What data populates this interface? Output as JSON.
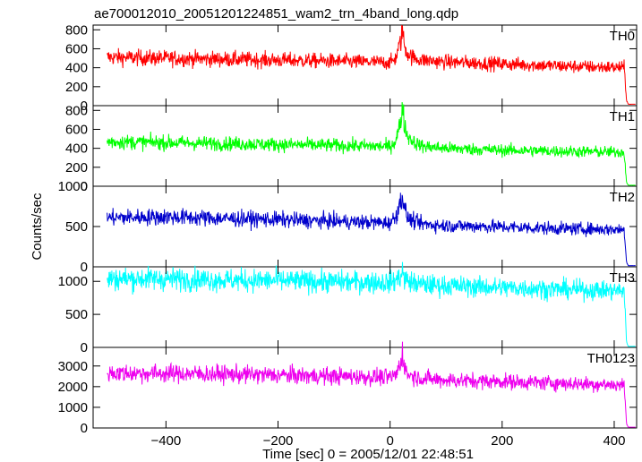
{
  "chart_data": {
    "type": "line",
    "title": "ae700012010_20051201224851_wam2_trn_4band_long.qdp",
    "xlabel": "Time [sec] 0 = 2005/12/01 22:48:51",
    "ylabel": "Counts/sec",
    "xlim": [
      -530,
      440
    ],
    "x_ticks": [
      -400,
      -200,
      0,
      200,
      400
    ],
    "x_tick_labels": [
      "−400",
      "−200",
      "0",
      "200",
      "400"
    ],
    "grid": false,
    "shared_x": true,
    "x": [
      -500,
      -450,
      -400,
      -350,
      -300,
      -250,
      -200,
      -150,
      -100,
      -50,
      0,
      10,
      20,
      22,
      25,
      30,
      40,
      50,
      60,
      80,
      100,
      150,
      200,
      250,
      300,
      350,
      400,
      418,
      422,
      425,
      440
    ],
    "panels": [
      {
        "name": "TH0",
        "color": "#ff0000",
        "ylim": [
          0,
          850
        ],
        "y_ticks": [
          0,
          200,
          400,
          600,
          800
        ],
        "y_tick_labels": [
          "0",
          "200",
          "400",
          "600",
          "800"
        ],
        "values": [
          510,
          505,
          500,
          495,
          490,
          485,
          480,
          475,
          470,
          462,
          455,
          500,
          700,
          810,
          650,
          560,
          510,
          490,
          480,
          470,
          460,
          450,
          440,
          430,
          420,
          410,
          405,
          400,
          60,
          15,
          15
        ]
      },
      {
        "name": "TH1",
        "color": "#00ff00",
        "ylim": [
          0,
          850
        ],
        "y_ticks": [
          0,
          200,
          400,
          600,
          800
        ],
        "y_tick_labels": [
          "0",
          "200",
          "400",
          "600",
          "800"
        ],
        "values": [
          470,
          465,
          460,
          455,
          450,
          445,
          440,
          435,
          430,
          425,
          420,
          480,
          700,
          900,
          680,
          540,
          480,
          440,
          420,
          410,
          400,
          390,
          380,
          375,
          370,
          365,
          360,
          360,
          40,
          10,
          10
        ]
      },
      {
        "name": "TH2",
        "color": "#0000cc",
        "ylim": [
          0,
          1000
        ],
        "y_ticks": [
          0,
          500,
          1000
        ],
        "y_tick_labels": [
          "0",
          "500",
          "1000"
        ],
        "values": [
          610,
          615,
          620,
          610,
          600,
          595,
          585,
          575,
          565,
          555,
          545,
          620,
          840,
          900,
          760,
          620,
          570,
          545,
          530,
          520,
          510,
          505,
          495,
          485,
          475,
          470,
          465,
          460,
          60,
          15,
          15
        ]
      },
      {
        "name": "TH3",
        "color": "#00ffff",
        "ylim": [
          0,
          1220
        ],
        "y_ticks": [
          0,
          500,
          1000
        ],
        "y_tick_labels": [
          "0",
          "500",
          "1000"
        ],
        "values": [
          1040,
          1040,
          1035,
          1030,
          1020,
          1015,
          1010,
          1000,
          995,
          990,
          985,
          1010,
          1100,
          1150,
          1060,
          1010,
          980,
          960,
          950,
          940,
          935,
          920,
          905,
          895,
          880,
          870,
          860,
          860,
          80,
          15,
          15
        ]
      },
      {
        "name": "TH0123",
        "color": "#ee00ee",
        "ylim": [
          0,
          3900
        ],
        "y_ticks": [
          0,
          1000,
          2000,
          3000
        ],
        "y_tick_labels": [
          "0",
          "1000",
          "2000",
          "3000"
        ],
        "values": [
          2660,
          2650,
          2640,
          2620,
          2600,
          2580,
          2560,
          2530,
          2510,
          2480,
          2450,
          2560,
          3200,
          3800,
          3050,
          2640,
          2520,
          2450,
          2400,
          2350,
          2320,
          2280,
          2250,
          2210,
          2170,
          2130,
          2090,
          2080,
          200,
          40,
          40
        ]
      }
    ]
  }
}
